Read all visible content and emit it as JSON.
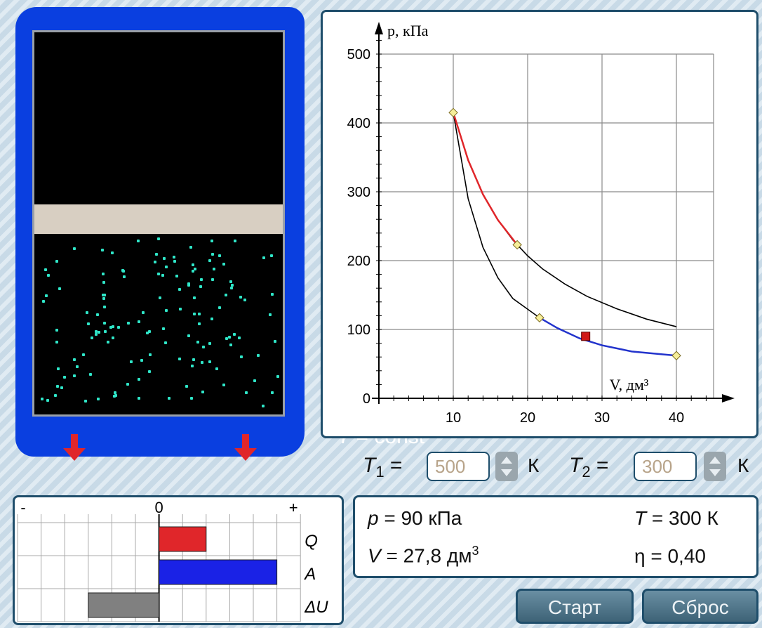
{
  "cylinder": {
    "label_var": "T",
    "label_rest": " = const",
    "molecule_color": "#2fe6c8",
    "piston_color": "#d8cfc2"
  },
  "chart_data": {
    "type": "line",
    "xlabel": "V, дм³",
    "ylabel": "p, кПа",
    "xlim": [
      0,
      42
    ],
    "ylim": [
      0,
      520
    ],
    "x_ticks": [
      10,
      20,
      30,
      40
    ],
    "y_ticks": [
      0,
      100,
      200,
      300,
      400,
      500
    ],
    "grid": true,
    "series": [
      {
        "color": "#000000",
        "x": [
          10,
          12,
          14,
          16,
          18,
          20,
          22,
          25,
          28,
          32,
          36,
          40
        ],
        "y": [
          415,
          346,
          296,
          259,
          230,
          207,
          188,
          166,
          148,
          130,
          115,
          104
        ]
      },
      {
        "color": "#000000",
        "x": [
          10,
          12,
          14,
          16,
          18,
          21.6,
          24,
          27,
          30,
          34,
          40
        ],
        "y": [
          415,
          290,
          219,
          175,
          145,
          117,
          102,
          87,
          77,
          68,
          62
        ]
      },
      {
        "color": "#e0262a",
        "x": [
          10,
          12,
          14,
          16,
          18.6
        ],
        "y": [
          415,
          346,
          296,
          259,
          223
        ]
      },
      {
        "color": "#2233cc",
        "x": [
          21.6,
          24,
          27,
          30,
          34,
          40
        ],
        "y": [
          117,
          102,
          87,
          77,
          68,
          62
        ]
      }
    ],
    "vertices": [
      [
        10,
        415
      ],
      [
        18.6,
        223
      ],
      [
        40,
        62
      ],
      [
        21.6,
        117
      ]
    ],
    "current_point": [
      27.8,
      90
    ]
  },
  "controls": {
    "t1_label": "T",
    "t1_sub": "1",
    "t1_value": "500",
    "t2_label": "T",
    "t2_sub": "2",
    "t2_value": "300",
    "equals": "=",
    "unit": "К"
  },
  "energy": {
    "minus": "-",
    "zero": "0",
    "plus": "+",
    "bars": [
      {
        "label": "Q",
        "value": 2,
        "color": "#e0262a"
      },
      {
        "label": "A",
        "value": 5,
        "color": "#1a22e6"
      },
      {
        "label": "ΔU",
        "value": -3,
        "color": "#808080"
      }
    ],
    "scale_max": 6
  },
  "readout": {
    "p_var": "p",
    "p_val": " = 90 кПа",
    "v_var": "V",
    "v_val": " = 27,8 дм",
    "v_sup": "3",
    "t_var": "T",
    "t_val": " = 300 К",
    "eta": "η = 0,40"
  },
  "buttons": {
    "start": "Старт",
    "reset": "Сброс"
  }
}
